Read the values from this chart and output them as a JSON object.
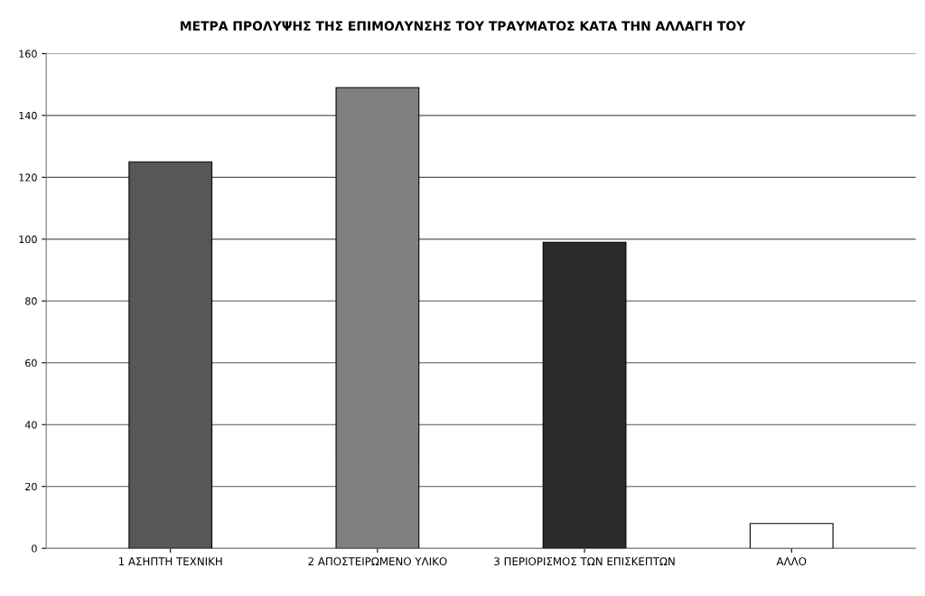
{
  "chart_data": {
    "type": "bar",
    "title": "ΜΕΤΡΑ ΠΡΟΛΥΨΗΣ ΤΗΣ ΕΠΙΜΟΛΥΝΣΗΣ ΤΟΥ ΤΡΑΥΜΑΤΟΣ ΚΑΤΑ ΤΗΝ ΑΛΛΑΓΗ ΤΟΥ",
    "categories": [
      "1 ΑΣΗΠΤΗ ΤΕΧΝΙΚΗ",
      "2 ΑΠΟΣΤΕΙΡΩΜΕΝΟ ΥΛΙΚΟ",
      "3 ΠΕΡΙΟΡΙΣΜΟΣ ΤΩΝ ΕΠΙΣΚΕΠΤΩΝ",
      "ΑΛΛΟ"
    ],
    "values": [
      125,
      149,
      99,
      8
    ],
    "colors": [
      "#575757",
      "#808080",
      "#2b2b2b",
      "#ffffff"
    ],
    "ylim": [
      0,
      160
    ],
    "yticks": [
      0,
      20,
      40,
      60,
      80,
      100,
      120,
      140,
      160
    ],
    "grid": "y"
  }
}
